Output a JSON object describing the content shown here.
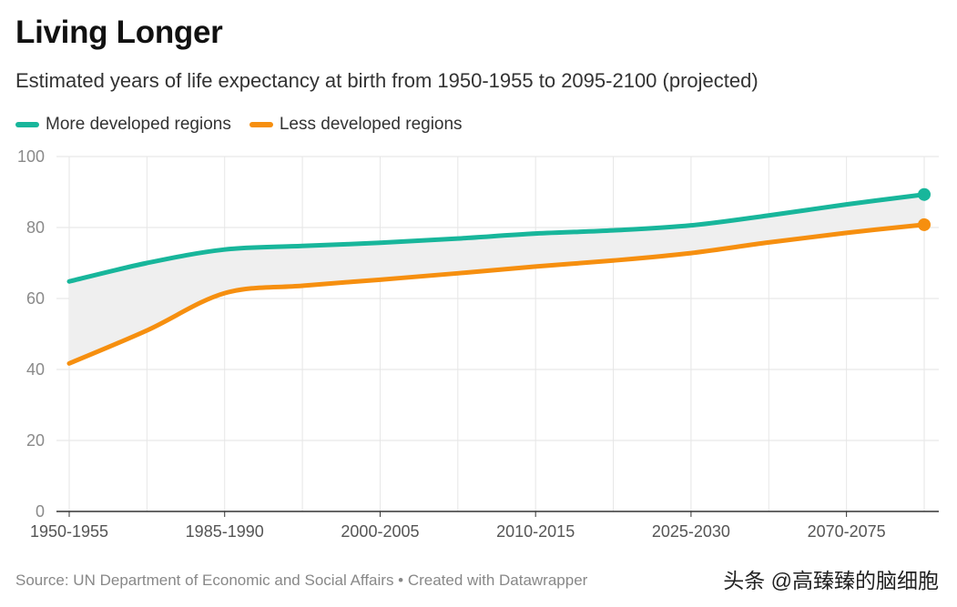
{
  "chart_data": {
    "type": "line",
    "title": "Living Longer",
    "subtitle": "Estimated years of life expectancy at birth from 1950-1955 to 2095-2100 (projected)",
    "x": [
      0,
      1,
      2,
      3,
      4,
      5,
      6,
      7,
      8,
      9,
      10,
      11
    ],
    "tick_labels": [
      {
        "x": 0,
        "label": "1950-1955"
      },
      {
        "x": 2,
        "label": "1985-1990"
      },
      {
        "x": 4,
        "label": "2000-2005"
      },
      {
        "x": 6,
        "label": "2010-2015"
      },
      {
        "x": 8,
        "label": "2025-2030"
      },
      {
        "x": 10,
        "label": "2070-2075"
      }
    ],
    "series": [
      {
        "name": "More developed regions",
        "color": "#18b69b",
        "values": [
          64.8,
          70.0,
          73.8,
          74.8,
          75.7,
          76.9,
          78.3,
          79.2,
          80.6,
          83.4,
          86.5,
          89.3
        ]
      },
      {
        "name": "Less developed regions",
        "color": "#f68f0f",
        "values": [
          41.7,
          51.0,
          61.5,
          63.6,
          65.3,
          67.1,
          69.0,
          70.7,
          72.8,
          75.8,
          78.5,
          80.8
        ]
      }
    ],
    "ylim": [
      0,
      100
    ],
    "yticks": [
      0,
      20,
      40,
      60,
      80,
      100
    ],
    "xlabel": "",
    "ylabel": "",
    "grid": true,
    "fill_between": true,
    "fill_color": "#efefef",
    "legend_position": "top-left"
  },
  "footer": {
    "source": "Source: UN Department of Economic and Social Affairs • Created with Datawrapper"
  },
  "watermark": "头条 @高臻臻的脑细胞"
}
